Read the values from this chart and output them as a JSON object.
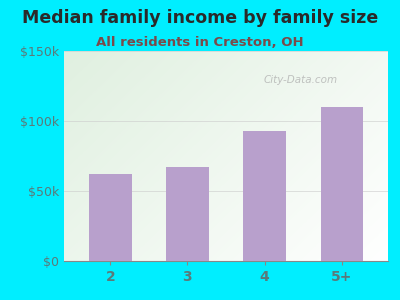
{
  "title": "Median family income by family size",
  "subtitle": "All residents in Creston, OH",
  "categories": [
    "2",
    "3",
    "4",
    "5+"
  ],
  "values": [
    62000,
    67000,
    93000,
    110000
  ],
  "bar_color": "#b8a0cc",
  "ylim": [
    0,
    150000
  ],
  "yticks": [
    0,
    50000,
    100000,
    150000
  ],
  "ytick_labels": [
    "$0",
    "$50k",
    "$100k",
    "$150k"
  ],
  "title_fontsize": 12.5,
  "subtitle_fontsize": 9.5,
  "title_color": "#2a2a2a",
  "subtitle_color": "#7a4a4a",
  "tick_color": "#5a7a7a",
  "background_outer": "#00eeff",
  "watermark": "City-Data.com",
  "gradient_colors": [
    "#e8f5e4",
    "#f0f8f0",
    "#f5f5f8",
    "#ffffff"
  ],
  "grid_color": "#cccccc"
}
